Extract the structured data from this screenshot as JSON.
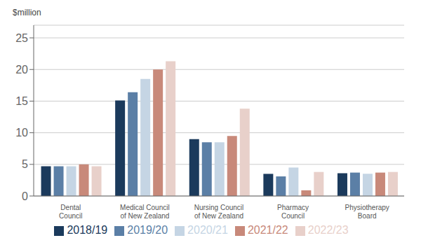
{
  "chart_data": {
    "type": "bar",
    "ylabel": "$million",
    "categories": [
      "Dental\nCouncil",
      "Medical Council\nof New Zealand",
      "Nursing Council\nof New Zealand",
      "Pharmacy\nCouncil",
      "Physiotherapy\nBoard"
    ],
    "series": [
      {
        "name": "2018/19",
        "color": "#1b3a5c",
        "values": [
          4.7,
          15.1,
          9.0,
          3.5,
          3.6
        ]
      },
      {
        "name": "2019/20",
        "color": "#5b7fa6",
        "values": [
          4.7,
          16.4,
          8.5,
          3.1,
          3.7
        ]
      },
      {
        "name": "2020/21",
        "color": "#c5d5e4",
        "values": [
          4.7,
          18.5,
          8.5,
          4.5,
          3.5
        ]
      },
      {
        "name": "2021/22",
        "color": "#c8897a",
        "values": [
          5.0,
          20.0,
          9.5,
          0.9,
          3.7
        ]
      },
      {
        "name": "2022/23",
        "color": "#e8d0ca",
        "values": [
          4.7,
          21.3,
          13.8,
          3.8,
          3.8
        ]
      }
    ],
    "ylim": [
      0,
      27
    ],
    "yticks": [
      0,
      5,
      10,
      15,
      20,
      25
    ],
    "grid": true,
    "legend": "bottom"
  }
}
